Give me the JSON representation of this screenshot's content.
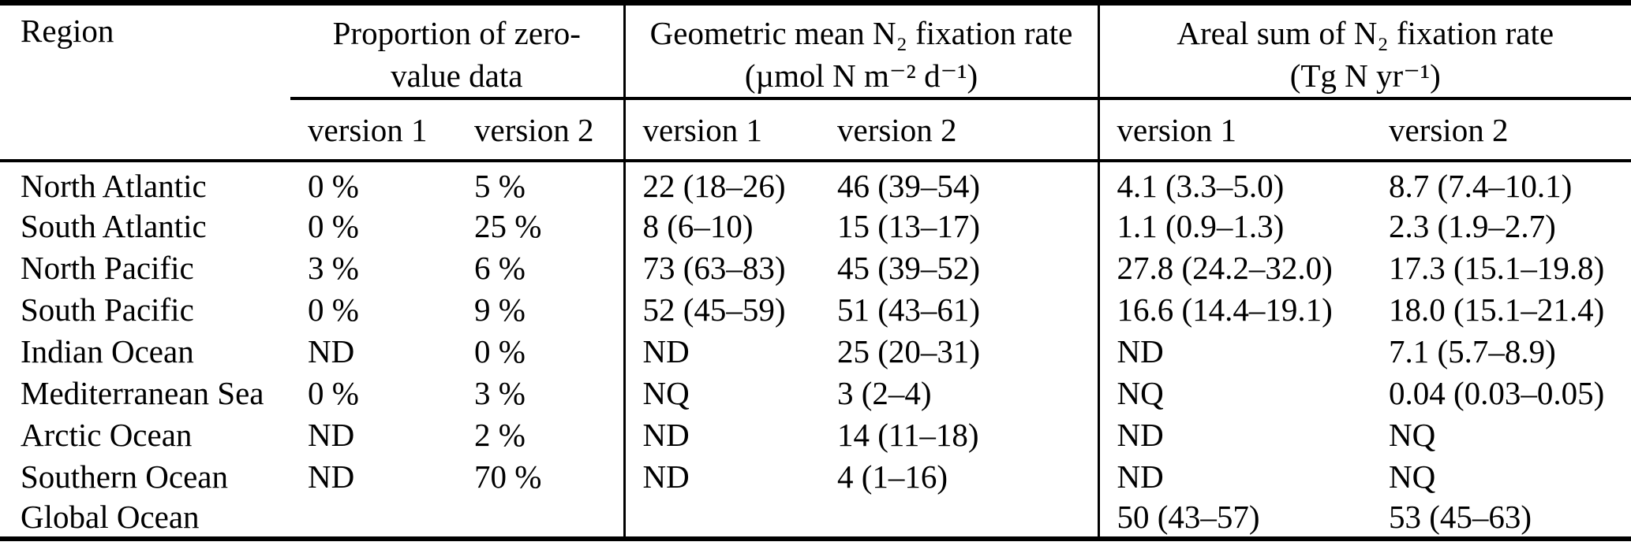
{
  "table": {
    "region_header": "Region",
    "groups": [
      {
        "title_line1": "Proportion of zero-",
        "title_line2": "value data",
        "sub": [
          "version 1",
          "version 2"
        ]
      },
      {
        "title_line1": "Geometric mean N₂ fixation rate",
        "title_line2": "(µmol N m⁻² d⁻¹)",
        "sub": [
          "version 1",
          "version 2"
        ]
      },
      {
        "title_line1": "Areal sum of N₂ fixation rate",
        "title_line2": "(Tg N yr⁻¹)",
        "sub": [
          "version 1",
          "version 2"
        ]
      }
    ],
    "rows": [
      {
        "region": "North Atlantic",
        "cells": [
          "0 %",
          "5 %",
          "22 (18–26)",
          "46 (39–54)",
          "4.1 (3.3–5.0)",
          "8.7 (7.4–10.1)"
        ]
      },
      {
        "region": "South Atlantic",
        "cells": [
          "0 %",
          "25 %",
          "8 (6–10)",
          "15 (13–17)",
          "1.1 (0.9–1.3)",
          "2.3 (1.9–2.7)"
        ]
      },
      {
        "region": "North Pacific",
        "cells": [
          "3 %",
          "6 %",
          "73 (63–83)",
          "45 (39–52)",
          "27.8 (24.2–32.0)",
          "17.3 (15.1–19.8)"
        ]
      },
      {
        "region": "South Pacific",
        "cells": [
          "0 %",
          "9 %",
          "52 (45–59)",
          "51 (43–61)",
          "16.6 (14.4–19.1)",
          "18.0 (15.1–21.4)"
        ]
      },
      {
        "region": "Indian Ocean",
        "cells": [
          "ND",
          "0 %",
          "ND",
          "25 (20–31)",
          "ND",
          "7.1 (5.7–8.9)"
        ]
      },
      {
        "region": "Mediterranean Sea",
        "cells": [
          "0 %",
          "3 %",
          "NQ",
          "3 (2–4)",
          "NQ",
          "0.04 (0.03–0.05)"
        ]
      },
      {
        "region": "Arctic Ocean",
        "cells": [
          "ND",
          "2 %",
          "ND",
          "14 (11–18)",
          "ND",
          "NQ"
        ]
      },
      {
        "region": "Southern Ocean",
        "cells": [
          "ND",
          "70 %",
          "ND",
          "4 (1–16)",
          "ND",
          "NQ"
        ]
      },
      {
        "region": "Global Ocean",
        "cells": [
          "",
          "",
          "",
          "",
          "50 (43–57)",
          "53 (45–63)"
        ]
      }
    ],
    "colors": {
      "rule": "#000000",
      "text": "#000000",
      "background": "#ffffff"
    }
  }
}
